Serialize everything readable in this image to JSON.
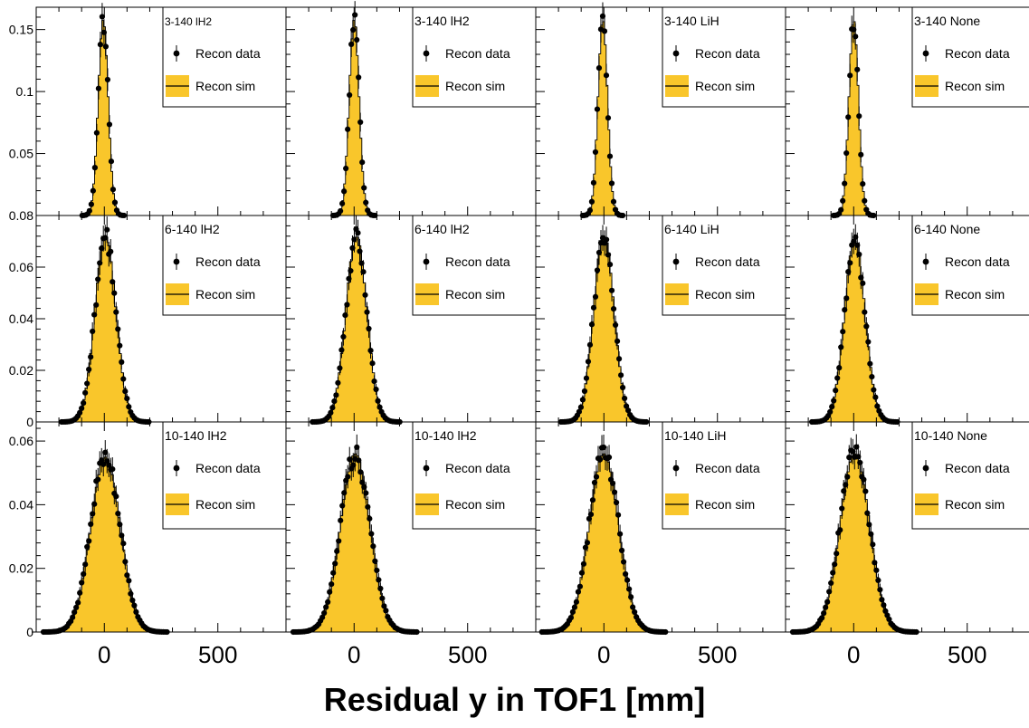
{
  "figure": {
    "xlabel": "Residual y in TOF1 [mm]"
  },
  "legend": {
    "data_label": "Recon data",
    "sim_label": "Recon sim",
    "sim_fill": "#f9c62b",
    "line_color": "#000000"
  },
  "colors": {
    "fill": "#f9c62b",
    "marker": "#000000",
    "frame": "#000000",
    "background": "#ffffff"
  },
  "chart_data": [
    {
      "type": "bar",
      "panel_label": "3-140 lH2",
      "row": 0,
      "col": 0,
      "mean": -5,
      "sigma": 22,
      "peak": 0.158,
      "xlim": [
        -300,
        800
      ],
      "ylim": [
        0,
        0.168
      ],
      "yticks": [
        0.05,
        0.1,
        0.15
      ],
      "ytick_labels": [
        "0.05",
        "0.1",
        "0.15"
      ],
      "xticks": [
        0,
        500
      ],
      "xtick_labels": [
        "0",
        "500"
      ]
    },
    {
      "type": "bar",
      "panel_label": "3-140 lH2",
      "row": 0,
      "col": 1,
      "mean": 0,
      "sigma": 22,
      "peak": 0.158,
      "xlim": [
        -300,
        800
      ],
      "ylim": [
        0,
        0.168
      ],
      "yticks": [],
      "ytick_labels": [],
      "xticks": [
        0,
        500
      ],
      "xtick_labels": [
        "0",
        "500"
      ]
    },
    {
      "type": "bar",
      "panel_label": "3-140 LiH",
      "row": 0,
      "col": 2,
      "mean": -5,
      "sigma": 21,
      "peak": 0.158,
      "xlim": [
        -300,
        800
      ],
      "ylim": [
        0,
        0.168
      ],
      "yticks": [],
      "ytick_labels": [],
      "xticks": [
        0,
        500
      ],
      "xtick_labels": [
        "0",
        "500"
      ]
    },
    {
      "type": "bar",
      "panel_label": "3-140 None",
      "row": 0,
      "col": 3,
      "mean": 0,
      "sigma": 21,
      "peak": 0.158,
      "xlim": [
        -300,
        800
      ],
      "ylim": [
        0,
        0.168
      ],
      "yticks": [],
      "ytick_labels": [],
      "xticks": [
        0,
        500
      ],
      "xtick_labels": [
        "0",
        "500"
      ]
    },
    {
      "type": "bar",
      "panel_label": "6-140 lH2",
      "row": 1,
      "col": 0,
      "mean": 5,
      "sigma": 46,
      "peak": 0.072,
      "xlim": [
        -300,
        800
      ],
      "ylim": [
        0,
        0.08
      ],
      "yticks": [
        0,
        0.02,
        0.04,
        0.06,
        0.08
      ],
      "ytick_labels": [
        "0",
        "0.02",
        "0.04",
        "0.06",
        "0.08"
      ],
      "xticks": [
        0,
        500
      ],
      "xtick_labels": [
        "0",
        "500"
      ]
    },
    {
      "type": "bar",
      "panel_label": "6-140 lH2",
      "row": 1,
      "col": 1,
      "mean": 10,
      "sigma": 46,
      "peak": 0.072,
      "xlim": [
        -300,
        800
      ],
      "ylim": [
        0,
        0.08
      ],
      "yticks": [],
      "ytick_labels": [],
      "xticks": [
        0,
        500
      ],
      "xtick_labels": [
        "0",
        "500"
      ]
    },
    {
      "type": "bar",
      "panel_label": "6-140 LiH",
      "row": 1,
      "col": 2,
      "mean": 0,
      "sigma": 45,
      "peak": 0.072,
      "xlim": [
        -300,
        800
      ],
      "ylim": [
        0,
        0.08
      ],
      "yticks": [],
      "ytick_labels": [],
      "xticks": [
        0,
        500
      ],
      "xtick_labels": [
        "0",
        "500"
      ]
    },
    {
      "type": "bar",
      "panel_label": "6-140 None",
      "row": 1,
      "col": 3,
      "mean": 5,
      "sigma": 45,
      "peak": 0.071,
      "xlim": [
        -300,
        800
      ],
      "ylim": [
        0,
        0.08
      ],
      "yticks": [],
      "ytick_labels": [],
      "xticks": [
        0,
        500
      ],
      "xtick_labels": [
        "0",
        "500"
      ]
    },
    {
      "type": "bar",
      "panel_label": "10-140 lH2",
      "row": 2,
      "col": 0,
      "mean": 5,
      "sigma": 65,
      "peak": 0.055,
      "xlim": [
        -300,
        800
      ],
      "ylim": [
        0,
        0.066
      ],
      "yticks": [
        0,
        0.02,
        0.04,
        0.06
      ],
      "ytick_labels": [
        "0",
        "0.02",
        "0.04",
        "0.06"
      ],
      "xticks": [
        0,
        500
      ],
      "xtick_labels": [
        "0",
        "500"
      ]
    },
    {
      "type": "bar",
      "panel_label": "10-140 lH2",
      "row": 2,
      "col": 1,
      "mean": 5,
      "sigma": 65,
      "peak": 0.056,
      "xlim": [
        -300,
        800
      ],
      "ylim": [
        0,
        0.066
      ],
      "yticks": [],
      "ytick_labels": [],
      "xticks": [
        0,
        500
      ],
      "xtick_labels": [
        "0",
        "500"
      ]
    },
    {
      "type": "bar",
      "panel_label": "10-140 LiH",
      "row": 2,
      "col": 2,
      "mean": 0,
      "sigma": 65,
      "peak": 0.056,
      "xlim": [
        -300,
        800
      ],
      "ylim": [
        0,
        0.066
      ],
      "yticks": [],
      "ytick_labels": [],
      "xticks": [
        0,
        500
      ],
      "xtick_labels": [
        "0",
        "500"
      ]
    },
    {
      "type": "bar",
      "panel_label": "10-140 None",
      "row": 2,
      "col": 3,
      "mean": 5,
      "sigma": 65,
      "peak": 0.056,
      "xlim": [
        -300,
        800
      ],
      "ylim": [
        0,
        0.066
      ],
      "yticks": [],
      "ytick_labels": [],
      "xticks": [
        0,
        500
      ],
      "xtick_labels": [
        "0",
        "500"
      ]
    }
  ]
}
